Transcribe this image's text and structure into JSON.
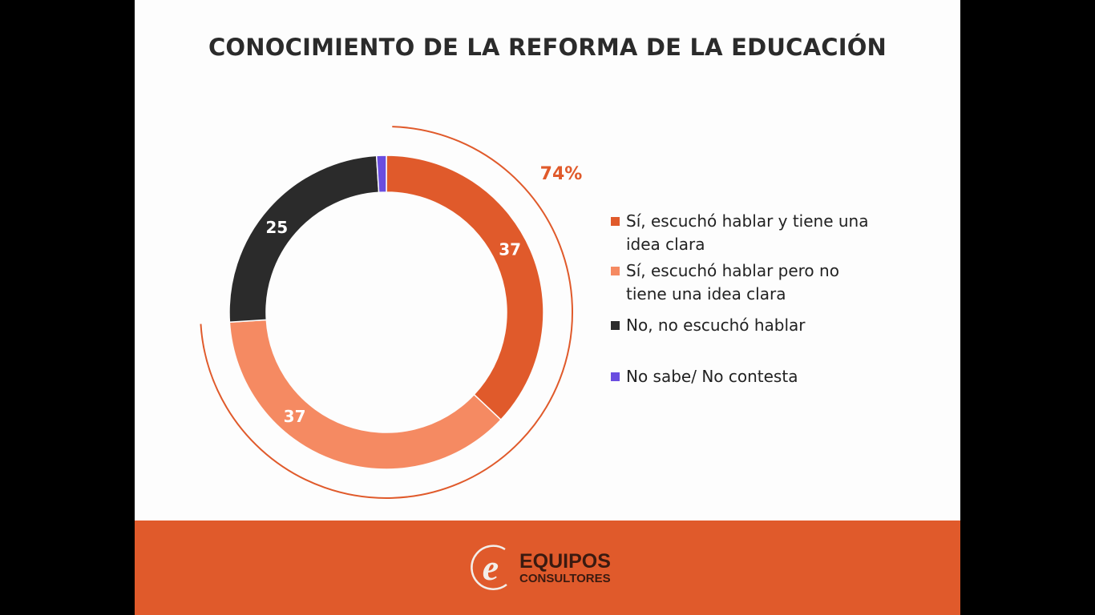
{
  "chart_data": {
    "type": "pie",
    "donut": true,
    "title": "CONOCIMIENTO DE LA REFORMA DE LA EDUCACIÓN",
    "categories": [
      "Sí, escuchó hablar y tiene una idea clara",
      "Sí, escuchó hablar pero no tiene una idea clara",
      "No, no escuchó hablar",
      "No sabe/ No contesta"
    ],
    "values": [
      37,
      37,
      25,
      1
    ],
    "data_labels": [
      "37",
      "37",
      "25",
      ""
    ],
    "colors": [
      "#e05a2b",
      "#f58a62",
      "#2b2b2b",
      "#6a4de0"
    ],
    "annotation": {
      "text": "74%",
      "covers": [
        "Sí, escuchó hablar y tiene una idea clara",
        "Sí, escuchó hablar pero no tiene una idea clara"
      ],
      "color": "#e05a2b"
    },
    "legend_placement": "right"
  },
  "footer": {
    "brand_line1": "EQUIPOS",
    "brand_line2": "CONSULTORES",
    "color": "#e05a2b"
  }
}
